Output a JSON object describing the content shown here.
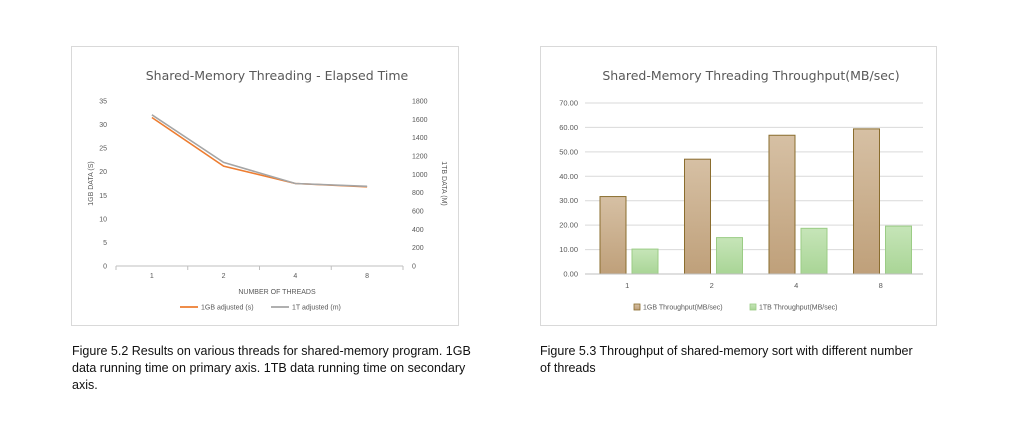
{
  "chart_data": [
    {
      "type": "line",
      "title": "Shared-Memory  Threading  - Elapsed  Time",
      "xlabel": "NUMBER OF THREADS",
      "ylabel": "1GB DATA (S)",
      "y2label": "1TB DATA (M)",
      "categories": [
        "1",
        "2",
        "4",
        "8"
      ],
      "ylim": [
        0,
        35
      ],
      "y2lim": [
        0,
        1800
      ],
      "yticks": [
        "0",
        "5",
        "10",
        "15",
        "20",
        "25",
        "30",
        "35"
      ],
      "y2ticks": [
        "0",
        "200",
        "400",
        "600",
        "800",
        "1000",
        "1200",
        "1400",
        "1600",
        "1800"
      ],
      "grid": false,
      "legend_position": "bottom",
      "series": [
        {
          "name": "1GB adjusted (s)",
          "axis": "primary",
          "color": "#ed7d31",
          "values": [
            31.5,
            21.2,
            17.5,
            16.8
          ]
        },
        {
          "name": "1T adjusted (m)",
          "axis": "secondary",
          "color": "#a5a5a5",
          "values": [
            1650,
            1130,
            900,
            870
          ]
        }
      ]
    },
    {
      "type": "bar",
      "title": "Shared-Memory  Threading  Throughput(MB/sec)",
      "categories": [
        "1",
        "2",
        "4",
        "8"
      ],
      "ylim": [
        0,
        70
      ],
      "yticks": [
        "0.00",
        "10.00",
        "20.00",
        "30.00",
        "40.00",
        "50.00",
        "60.00",
        "70.00"
      ],
      "grid": true,
      "legend_position": "bottom",
      "series": [
        {
          "name": "1GB Throughput(MB/sec)",
          "color": "#c8ad8c",
          "edge": "#8a6d2e",
          "values": [
            31.7,
            47.0,
            56.8,
            59.4
          ]
        },
        {
          "name": "1TB Throughput(MB/sec)",
          "color": "#b5dba5",
          "edge": "#9bcc85",
          "values": [
            10.2,
            14.9,
            18.7,
            19.6
          ]
        }
      ]
    }
  ],
  "captions": {
    "fig52": "Figure 5.2 Results on various threads for shared-memory program. 1GB data running time on primary axis. 1TB data running time on secondary axis.",
    "fig53": "Figure 5.3 Throughput of shared-memory sort with different number of threads"
  }
}
